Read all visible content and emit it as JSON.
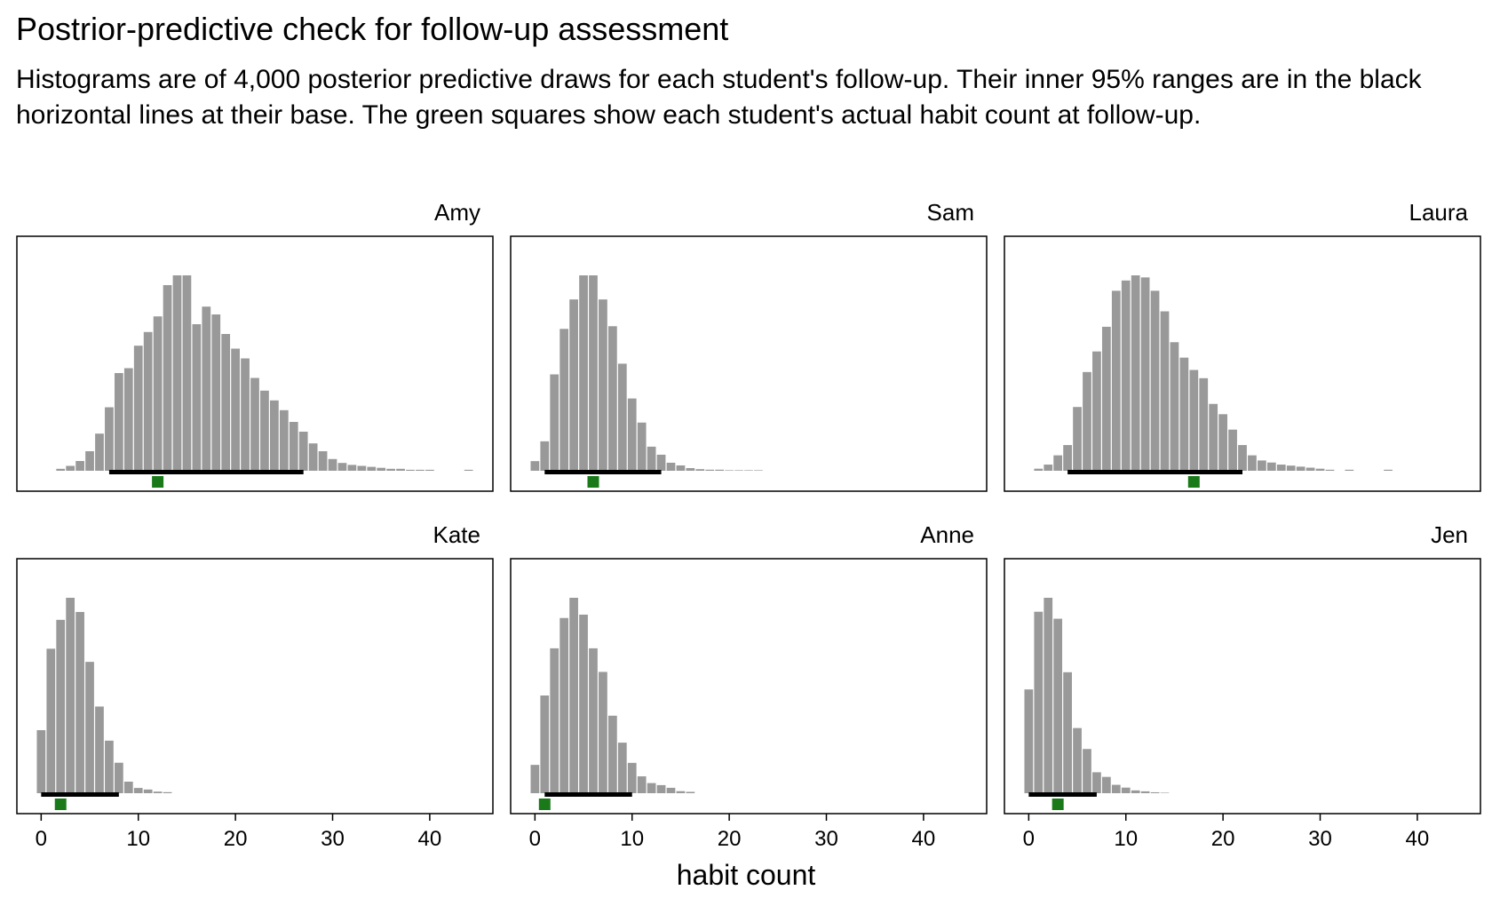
{
  "chart_data": {
    "type": "bar",
    "title": "Postrior-predictive check for follow-up assessment",
    "subtitle": "Histograms are of 4,000 posterior predictive draws for each student's follow-up. Their inner 95% ranges are in the black horizontal lines at their base. The green squares show each student's actual habit count at follow-up.",
    "xlabel": "habit count",
    "xlim": [
      -2.5,
      46.5
    ],
    "xticks": [
      0,
      10,
      20,
      30,
      40
    ],
    "grid": false,
    "bar_color": "#999999",
    "range_color": "#000000",
    "observed_color": "#1a7a1a",
    "panels": [
      {
        "name": "Amy",
        "interval": [
          7,
          27
        ],
        "observed": 12,
        "bins": [
          [
            2,
            2
          ],
          [
            3,
            5
          ],
          [
            4,
            10
          ],
          [
            5,
            20
          ],
          [
            6,
            38
          ],
          [
            7,
            65
          ],
          [
            8,
            100
          ],
          [
            9,
            105
          ],
          [
            10,
            128
          ],
          [
            11,
            142
          ],
          [
            12,
            158
          ],
          [
            13,
            190
          ],
          [
            14,
            200
          ],
          [
            15,
            200
          ],
          [
            16,
            150
          ],
          [
            17,
            168
          ],
          [
            18,
            160
          ],
          [
            19,
            140
          ],
          [
            20,
            125
          ],
          [
            21,
            115
          ],
          [
            22,
            95
          ],
          [
            23,
            82
          ],
          [
            24,
            72
          ],
          [
            25,
            62
          ],
          [
            26,
            50
          ],
          [
            27,
            40
          ],
          [
            28,
            28
          ],
          [
            29,
            20
          ],
          [
            30,
            12
          ],
          [
            31,
            8
          ],
          [
            32,
            6
          ],
          [
            33,
            5
          ],
          [
            34,
            4
          ],
          [
            35,
            3
          ],
          [
            36,
            2
          ],
          [
            37,
            2
          ],
          [
            38,
            1
          ],
          [
            39,
            1
          ],
          [
            40,
            1
          ],
          [
            44,
            1
          ]
        ]
      },
      {
        "name": "Sam",
        "interval": [
          1,
          13
        ],
        "observed": 6,
        "bins": [
          [
            0,
            18
          ],
          [
            1,
            55
          ],
          [
            2,
            180
          ],
          [
            3,
            265
          ],
          [
            4,
            320
          ],
          [
            5,
            365
          ],
          [
            6,
            365
          ],
          [
            7,
            320
          ],
          [
            8,
            270
          ],
          [
            9,
            200
          ],
          [
            10,
            135
          ],
          [
            11,
            90
          ],
          [
            12,
            45
          ],
          [
            13,
            30
          ],
          [
            14,
            15
          ],
          [
            15,
            10
          ],
          [
            16,
            5
          ],
          [
            17,
            3
          ],
          [
            18,
            2
          ],
          [
            19,
            2
          ],
          [
            20,
            1
          ],
          [
            21,
            1
          ],
          [
            22,
            1
          ],
          [
            23,
            1
          ]
        ]
      },
      {
        "name": "Laura",
        "interval": [
          4,
          22
        ],
        "observed": 17,
        "bins": [
          [
            1,
            2
          ],
          [
            2,
            6
          ],
          [
            3,
            15
          ],
          [
            4,
            25
          ],
          [
            5,
            62
          ],
          [
            6,
            96
          ],
          [
            7,
            116
          ],
          [
            8,
            140
          ],
          [
            9,
            175
          ],
          [
            10,
            185
          ],
          [
            11,
            190
          ],
          [
            12,
            188
          ],
          [
            13,
            175
          ],
          [
            14,
            155
          ],
          [
            15,
            125
          ],
          [
            16,
            110
          ],
          [
            17,
            98
          ],
          [
            18,
            90
          ],
          [
            19,
            65
          ],
          [
            20,
            55
          ],
          [
            21,
            40
          ],
          [
            22,
            25
          ],
          [
            23,
            15
          ],
          [
            24,
            10
          ],
          [
            25,
            8
          ],
          [
            26,
            6
          ],
          [
            27,
            5
          ],
          [
            28,
            4
          ],
          [
            29,
            3
          ],
          [
            30,
            2
          ],
          [
            31,
            1
          ],
          [
            33,
            1
          ],
          [
            37,
            1
          ]
        ]
      },
      {
        "name": "Kate",
        "interval": [
          0,
          8
        ],
        "observed": 2,
        "bins": [
          [
            0,
            120
          ],
          [
            1,
            275
          ],
          [
            2,
            330
          ],
          [
            3,
            372
          ],
          [
            4,
            345
          ],
          [
            5,
            250
          ],
          [
            6,
            165
          ],
          [
            7,
            100
          ],
          [
            8,
            58
          ],
          [
            9,
            22
          ],
          [
            10,
            10
          ],
          [
            11,
            7
          ],
          [
            12,
            3
          ],
          [
            13,
            2
          ]
        ]
      },
      {
        "name": "Anne",
        "interval": [
          1,
          10
        ],
        "observed": 1,
        "bins": [
          [
            0,
            42
          ],
          [
            1,
            145
          ],
          [
            2,
            215
          ],
          [
            3,
            260
          ],
          [
            4,
            290
          ],
          [
            5,
            265
          ],
          [
            6,
            215
          ],
          [
            7,
            180
          ],
          [
            8,
            115
          ],
          [
            9,
            75
          ],
          [
            10,
            45
          ],
          [
            11,
            25
          ],
          [
            12,
            15
          ],
          [
            13,
            12
          ],
          [
            14,
            8
          ],
          [
            15,
            3
          ],
          [
            16,
            2
          ]
        ]
      },
      {
        "name": "Jen",
        "interval": [
          0,
          7
        ],
        "observed": 3,
        "bins": [
          [
            0,
            223
          ],
          [
            1,
            390
          ],
          [
            2,
            420
          ],
          [
            3,
            375
          ],
          [
            4,
            260
          ],
          [
            5,
            140
          ],
          [
            6,
            95
          ],
          [
            7,
            45
          ],
          [
            8,
            35
          ],
          [
            9,
            18
          ],
          [
            10,
            12
          ],
          [
            11,
            6
          ],
          [
            12,
            4
          ],
          [
            13,
            2
          ],
          [
            14,
            1
          ]
        ]
      }
    ]
  }
}
